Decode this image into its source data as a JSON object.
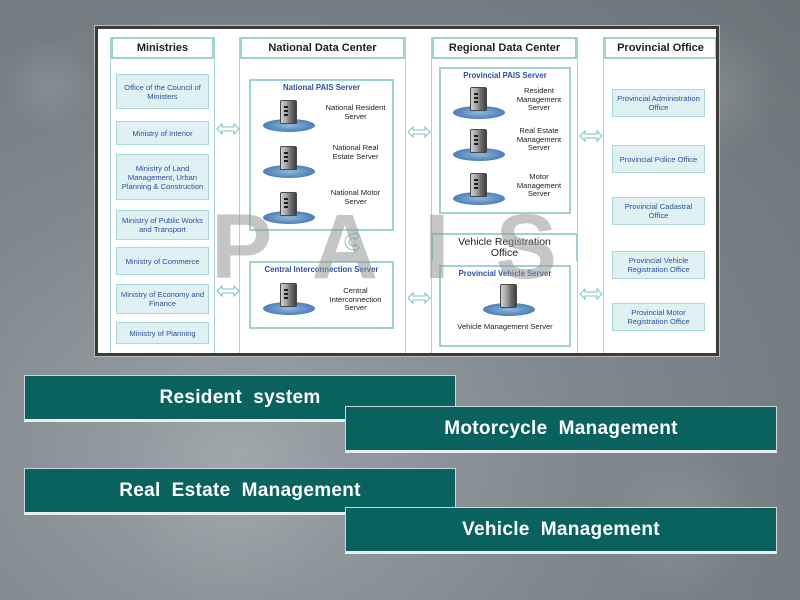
{
  "columns": {
    "ministries": {
      "title": "Ministries",
      "items": [
        "Office of the Council of Ministers",
        "Ministry of Interior",
        "Ministry of Land Management, Urban Planning & Construction",
        "Ministry of Public Works and Transport",
        "Ministry of Commerce",
        "Ministry of Economy and Finance",
        "Ministry of Planning"
      ]
    },
    "national": {
      "title": "National Data Center",
      "pais_server": {
        "title": "National PAIS Server",
        "servers": [
          "National Resident Server",
          "National Real Estate Server",
          "National Motor Server"
        ]
      },
      "interconnection": {
        "title": "Central Interconnection Server",
        "server": "Central Interconnection Server"
      }
    },
    "regional": {
      "title": "Regional Data Center",
      "pais_server": {
        "title": "Provincial PAIS Server",
        "servers": [
          "Resident Management Server",
          "Real Estate Management Server",
          "Motor Management Server"
        ]
      },
      "vehicle_office": {
        "title": "Vehicle Registration Office",
        "server_box_title": "Provincial Vehicle Server",
        "server": "Vehicle Management Server"
      }
    },
    "provincial": {
      "title": "Provincial Office",
      "items": [
        "Provincial Administration Office",
        "Provincial Police Office",
        "Provincial Cadastral Office",
        "Provincial Vehicle Registration Office",
        "Provincial Motor Registration Office"
      ]
    }
  },
  "watermark": "PAIS",
  "banners": [
    "Resident  system",
    "Motorcycle  Management",
    "Real  Estate  Management",
    "Vehicle  Management"
  ],
  "colors": {
    "banner": "#0a625f",
    "pill_bg": "#dff1f3",
    "pill_text": "#2c50a0",
    "border": "#9fd2d4"
  }
}
